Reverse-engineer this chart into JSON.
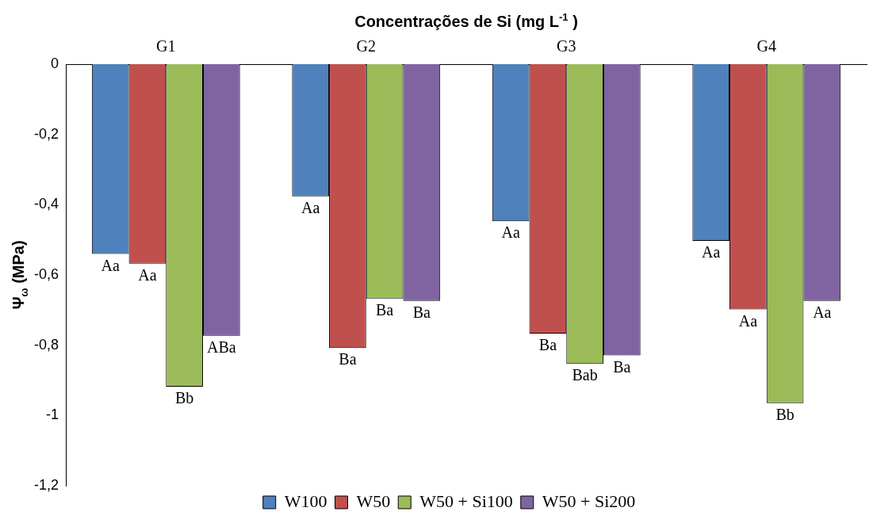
{
  "chart_data": {
    "type": "bar",
    "title": "Concentrações de Si (mg L$^{-1}$ )",
    "ylabel": "Ψ$_{ω}$ (MPa)",
    "categories": [
      "G1",
      "G2",
      "G3",
      "G4"
    ],
    "series": [
      {
        "name": "W100",
        "color": "#4f81bd",
        "values": [
          -0.54,
          -0.376,
          -0.447,
          -0.503
        ],
        "value_labels": [
          "Aa",
          "Aa",
          "Aa",
          "Aa"
        ]
      },
      {
        "name": "W50",
        "color": "#c0504d",
        "values": [
          -0.568,
          -0.808,
          -0.767,
          -0.698
        ],
        "value_labels": [
          "Aa",
          "Ba",
          "Ba",
          "Aa"
        ]
      },
      {
        "name": "W50 + Si100",
        "color": "#9bbb59",
        "values": [
          -0.918,
          -0.667,
          -0.853,
          -0.965
        ],
        "value_labels": [
          "Bb",
          "Ba",
          "Bab",
          "Bb"
        ]
      },
      {
        "name": "W50 + Si200",
        "color": "#8064a2",
        "values": [
          -0.773,
          -0.674,
          -0.829,
          -0.674
        ],
        "value_labels": [
          "ABa",
          "Ba",
          "Ba",
          "Aa"
        ]
      }
    ],
    "ylim": [
      -1.2,
      0
    ],
    "yticks": [
      {
        "value": -1.2,
        "label": "-1,2"
      },
      {
        "value": -1,
        "label": "-1"
      },
      {
        "value": -0.8,
        "label": "-0,8"
      },
      {
        "value": -0.6,
        "label": "-0,6"
      },
      {
        "value": -0.4,
        "label": "-0,4"
      },
      {
        "value": -0.2,
        "label": "-0,2"
      },
      0
    ],
    "grid": false,
    "legend": "bottom"
  }
}
